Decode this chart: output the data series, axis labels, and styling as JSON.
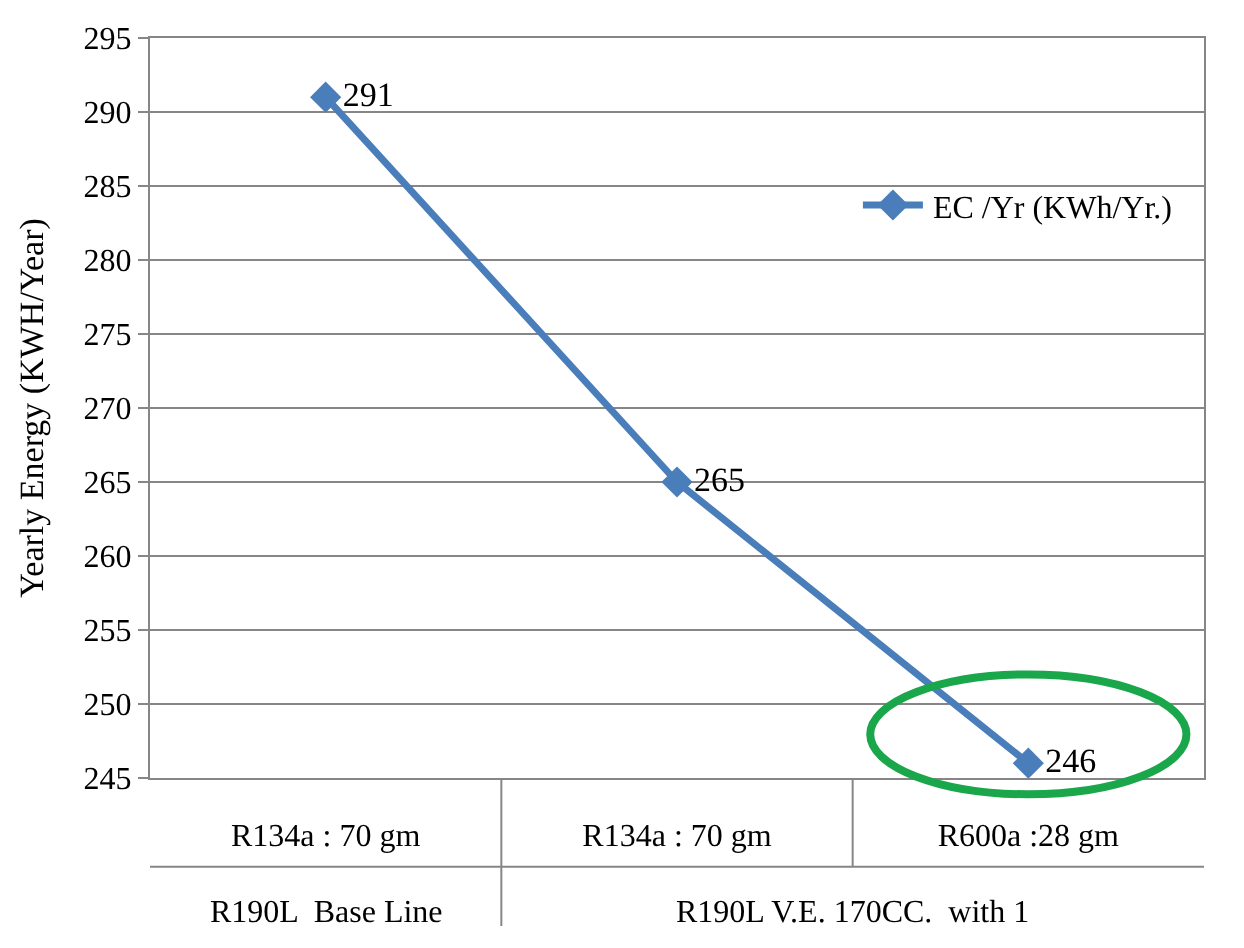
{
  "chart_data": {
    "type": "line",
    "ylabel": "Yearly Energy (KWH/Year)",
    "categories": [
      "R134a : 70 gm",
      "R134a : 70 gm",
      "R600a :28 gm"
    ],
    "series": [
      {
        "name": "EC /Yr (KWh/Yr.)",
        "color": "#4a7ebb",
        "values": [
          291,
          265,
          246
        ]
      }
    ],
    "ylim": [
      245,
      295
    ],
    "yticks": [
      245,
      250,
      255,
      260,
      265,
      270,
      275,
      280,
      285,
      290,
      295
    ],
    "grid": "y",
    "legend": "top right",
    "marker": "diamond",
    "line_style": "solid",
    "data_labels": true,
    "annotations": [
      "R190L  Base Line",
      "R190L V.E. 170CC.  with 1"
    ]
  }
}
